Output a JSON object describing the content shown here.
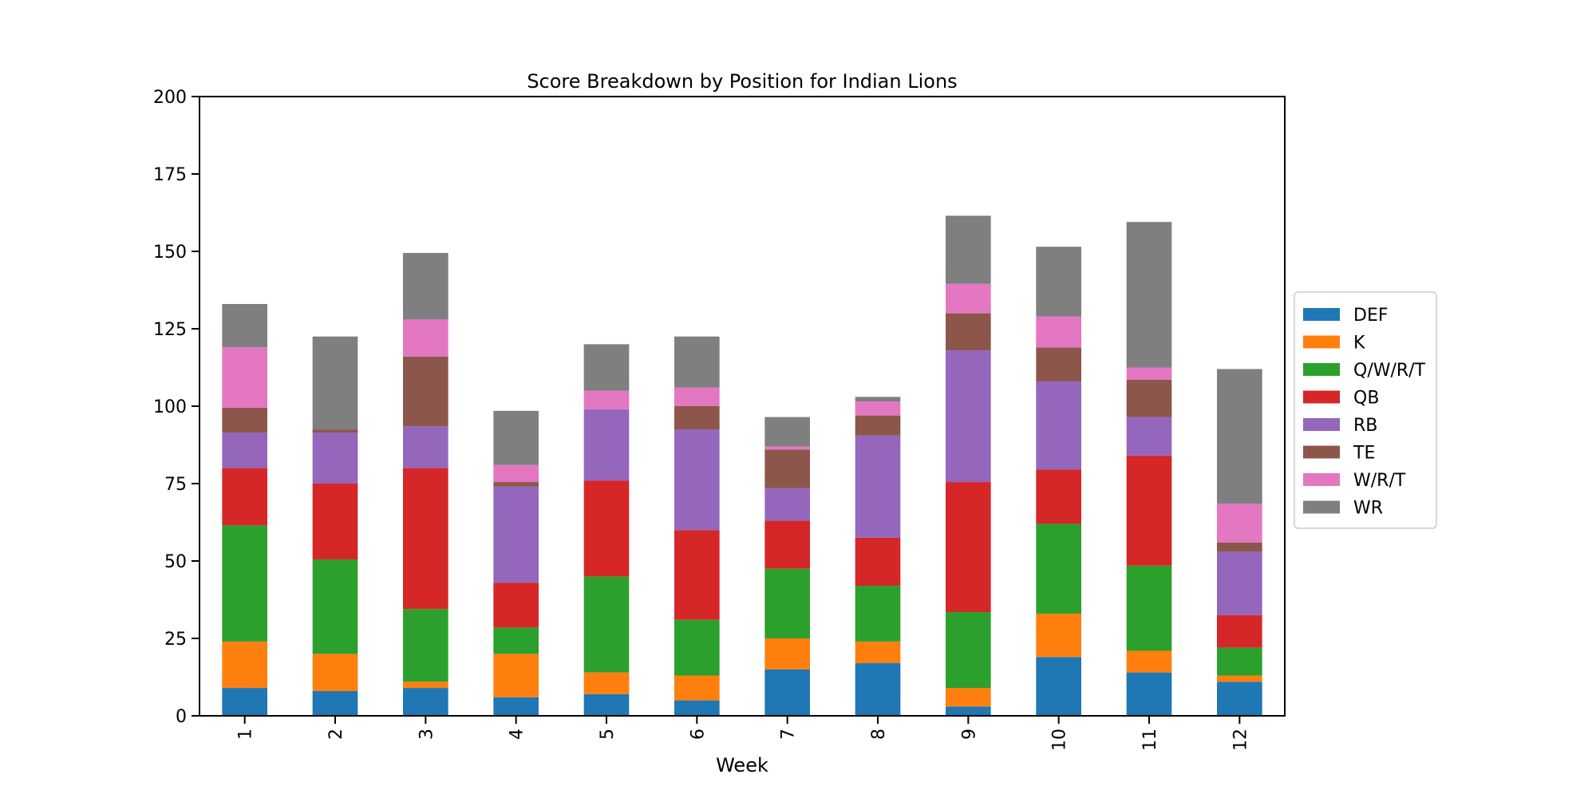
{
  "chart_data": {
    "type": "bar",
    "stacked": true,
    "title": "Score Breakdown by Position for Indian Lions",
    "xlabel": "Week",
    "ylabel": "",
    "ylim": [
      0,
      200
    ],
    "yticks": [
      0,
      25,
      50,
      75,
      100,
      125,
      150,
      175,
      200
    ],
    "categories": [
      "1",
      "2",
      "3",
      "4",
      "5",
      "6",
      "7",
      "8",
      "9",
      "10",
      "11",
      "12"
    ],
    "legend_position": "right",
    "series": [
      {
        "name": "DEF",
        "color": "#1f77b4",
        "values": [
          9,
          8,
          9,
          6,
          7,
          5,
          15,
          17,
          3,
          19,
          14,
          11
        ]
      },
      {
        "name": "K",
        "color": "#ff7f0e",
        "values": [
          15,
          12,
          2,
          14,
          7,
          8,
          10,
          7,
          6,
          14,
          7,
          2
        ]
      },
      {
        "name": "Q/W/R/T",
        "color": "#2ca02c",
        "values": [
          37.5,
          30.5,
          23.5,
          8.5,
          31,
          18,
          22.5,
          18,
          24.5,
          29,
          27.5,
          9
        ]
      },
      {
        "name": "QB",
        "color": "#d62728",
        "values": [
          18.5,
          24.5,
          45.5,
          14.5,
          31,
          29,
          15.5,
          15.5,
          42,
          17.5,
          35.5,
          10.5
        ]
      },
      {
        "name": "RB",
        "color": "#9467bd",
        "values": [
          11.5,
          16.5,
          13.5,
          31,
          23,
          32.5,
          10.5,
          33,
          42.5,
          28.5,
          12.5,
          20.5
        ]
      },
      {
        "name": "TE",
        "color": "#8c564b",
        "values": [
          8,
          1,
          22.5,
          1.5,
          0,
          7.5,
          12.5,
          6.5,
          12,
          11,
          12,
          3
        ]
      },
      {
        "name": "W/R/T",
        "color": "#e377c2",
        "values": [
          19.5,
          0,
          12,
          5.5,
          6,
          6,
          1,
          4.5,
          9.5,
          10,
          4,
          12.5
        ]
      },
      {
        "name": "WR",
        "color": "#7f7f7f",
        "values": [
          14,
          30,
          21.5,
          17.5,
          15,
          16.5,
          9.5,
          1.5,
          22,
          22.5,
          47,
          43.5
        ]
      }
    ]
  }
}
